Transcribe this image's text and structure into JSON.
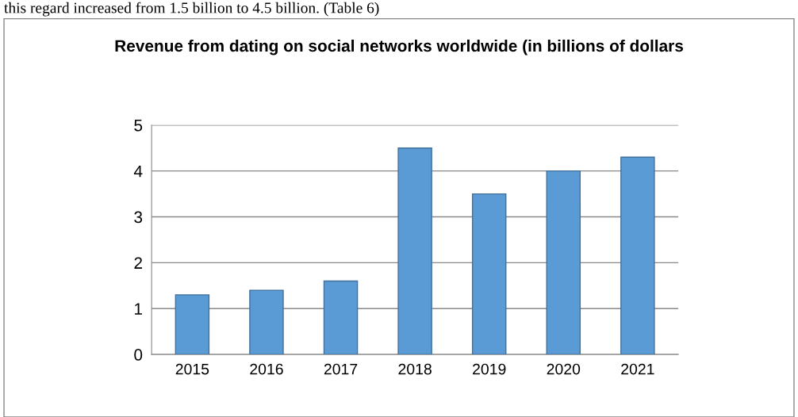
{
  "chart_data": {
    "type": "bar",
    "title": "Revenue from dating on social networks worldwide (in billions of dollars",
    "annotations": [
      "this regard increased from 1.5 billion to 4.5 billion. (Table 6)"
    ],
    "categories": [
      "2015",
      "2016",
      "2017",
      "2018",
      "2019",
      "2020",
      "2021"
    ],
    "values": [
      1.3,
      1.4,
      1.6,
      4.5,
      3.5,
      4.0,
      4.3
    ],
    "color": "#5b9bd5",
    "ylim": [
      0,
      5
    ],
    "yticks": [
      0,
      1,
      2,
      3,
      4,
      5
    ],
    "grid": "y"
  }
}
